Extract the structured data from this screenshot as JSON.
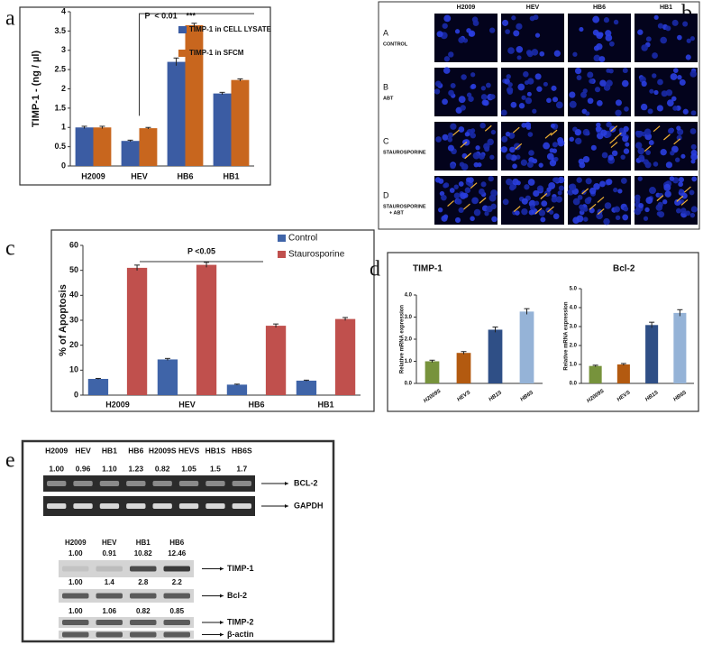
{
  "panel_labels": [
    "a",
    "b",
    "c",
    "d",
    "e"
  ],
  "chart_data": [
    {
      "type": "bar",
      "ylabel": "TIMP-1 - (ng / µl)",
      "annotation": "P  < 0.01",
      "stars": "***",
      "categories": [
        "H2009",
        "HEV",
        "HB6",
        "HB1"
      ],
      "series": [
        {
          "name": "TIMP-1 in CELL LYSATE",
          "color": "#3b5ca3",
          "values": [
            1.0,
            0.65,
            2.7,
            1.88
          ],
          "errors": [
            0.03,
            0.02,
            0.1,
            0.03
          ]
        },
        {
          "name": "TIMP-1 in SFCM",
          "color": "#c8661e",
          "values": [
            1.0,
            0.98,
            3.65,
            2.23
          ],
          "errors": [
            0.03,
            0.02,
            0.05,
            0.03
          ]
        }
      ],
      "ylim": [
        0,
        4
      ],
      "yticks": [
        0,
        0.5,
        1,
        1.5,
        2,
        2.5,
        3,
        3.5,
        4
      ]
    },
    {
      "type": "bar",
      "ylabel": "% of Apoptosis",
      "annotation": "P <0.05",
      "categories": [
        "H2009",
        "HEV",
        "HB6",
        "HB1"
      ],
      "series": [
        {
          "name": "Control",
          "color": "#3f64a8",
          "values": [
            6.5,
            14.3,
            4.2,
            5.8
          ],
          "errors": [
            0.2,
            0.4,
            0.2,
            0.2
          ]
        },
        {
          "name": "Staurosporine",
          "color": "#c0504d",
          "values": [
            51,
            52.2,
            27.8,
            30.5
          ],
          "errors": [
            1.1,
            1.0,
            0.7,
            0.6
          ]
        }
      ],
      "ylim": [
        0,
        60
      ],
      "yticks": [
        0,
        10,
        20,
        30,
        40,
        50,
        60
      ]
    },
    {
      "type": "bar",
      "title": "TIMP-1",
      "ylabel": "Relative mRNA expression",
      "categories": [
        "H2009S",
        "HEVS",
        "HB1S",
        "HB6S"
      ],
      "values": [
        1.0,
        1.38,
        2.43,
        3.25
      ],
      "errors": [
        0.05,
        0.06,
        0.12,
        0.13
      ],
      "colors": [
        "#77933c",
        "#b35a10",
        "#2f4f86",
        "#95b3d7"
      ],
      "ylim": [
        0,
        4
      ],
      "yticks": [
        {
          "value": 0,
          "label": "0.0"
        },
        {
          "value": 1,
          "label": "1.0"
        },
        {
          "value": 2,
          "label": "2.0"
        },
        {
          "value": 3,
          "label": "3.0"
        },
        {
          "value": 4,
          "label": "4.0"
        }
      ]
    },
    {
      "type": "bar",
      "title": "Bcl-2",
      "ylabel": "Relative mRNA expression",
      "categories": [
        "H2009S",
        "HEVS",
        "HB1S",
        "HB6S"
      ],
      "values": [
        0.92,
        1.0,
        3.08,
        3.72
      ],
      "errors": [
        0.04,
        0.05,
        0.15,
        0.17
      ],
      "colors": [
        "#77933c",
        "#b35a10",
        "#2f4f86",
        "#95b3d7"
      ],
      "ylim": [
        0,
        5
      ],
      "yticks": [
        {
          "value": 0,
          "label": "0.0"
        },
        {
          "value": 1,
          "label": "1.0"
        },
        {
          "value": 2,
          "label": "2.0"
        },
        {
          "value": 3,
          "label": "3.0"
        },
        {
          "value": 4,
          "label": "4.0"
        },
        {
          "value": 5,
          "label": "5.0"
        }
      ]
    }
  ],
  "microscopy": {
    "columns": [
      "H2009",
      "HEV",
      "HB6",
      "HB1"
    ],
    "rows": [
      {
        "letter": "A",
        "label": "CONTROL"
      },
      {
        "letter": "B",
        "label": "ABT"
      },
      {
        "letter": "C",
        "label": "STAUROSPORINE"
      },
      {
        "letter": "D",
        "label": "STAUROSPORINE",
        "label_line2": "+ ABT"
      }
    ]
  },
  "gel": {
    "lanes": [
      "H2009",
      "HEV",
      "HB1",
      "HB6",
      "H2009S",
      "HEVS",
      "HB1S",
      "HB6S"
    ],
    "ratios": [
      "1.00",
      "0.96",
      "1.10",
      "1.23",
      "0.82",
      "1.05",
      "1.5",
      "1.7"
    ],
    "bands": [
      "BCL-2",
      "GAPDH"
    ]
  },
  "western": {
    "lanes": [
      "H2009",
      "HEV",
      "HB1",
      "HB6"
    ],
    "blots": [
      {
        "ratios": [
          "1.00",
          "0.91",
          "10.82",
          "12.46"
        ],
        "label": "TIMP-1"
      },
      {
        "ratios": [
          "1.00",
          "1.4",
          "2.8",
          "2.2"
        ],
        "label": "Bcl-2"
      },
      {
        "ratios": [
          "1.00",
          "1.06",
          "0.82",
          "0.85"
        ],
        "label": "TIMP-2"
      },
      {
        "label": "β-actin"
      }
    ]
  }
}
